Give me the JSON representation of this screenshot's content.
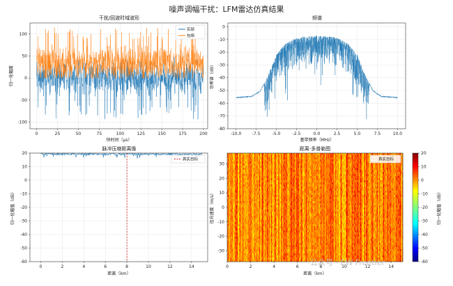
{
  "suptitle": "噪声调幅干扰：LFM雷达仿真结果",
  "watermark": "公众号 · EW Frontier",
  "colors": {
    "blue": "#1f77b4",
    "orange": "#ff7f0e",
    "red": "#d62728",
    "grid": "#e6e6e6"
  },
  "chart_data": [
    {
      "type": "line",
      "title": "干扰/回波时域波形",
      "xlabel": "快时间（μs）",
      "ylabel": "归一化幅度",
      "xlim": [
        -8,
        205
      ],
      "ylim": [
        -115,
        125
      ],
      "xticks": [
        0,
        25,
        50,
        75,
        100,
        125,
        150,
        175,
        200
      ],
      "yticks": [
        -100,
        -50,
        0,
        50,
        100
      ],
      "grid": true,
      "legend_position": "top-right",
      "series": [
        {
          "name": "实部",
          "color": "#1f77b4",
          "pattern": "noise",
          "center": 0,
          "spread": [
            -95,
            55
          ],
          "x_range": [
            0,
            200
          ]
        },
        {
          "name": "包络",
          "color": "#ff7f0e",
          "pattern": "noise",
          "center": 20,
          "spread": [
            0,
            115
          ],
          "x_range": [
            0,
            200
          ]
        }
      ]
    },
    {
      "type": "line",
      "title": "频谱",
      "xlabel": "基带频率（MHz）",
      "ylabel": "功率谱（dB）",
      "xlim": [
        -11,
        11
      ],
      "ylim": [
        -80,
        3
      ],
      "xticks": [
        -10.0,
        -7.5,
        -5.0,
        -2.5,
        0.0,
        2.5,
        5.0,
        7.5,
        10.0
      ],
      "yticks": [
        0,
        -10,
        -20,
        -30,
        -40,
        -50,
        -60,
        -70,
        -80
      ],
      "grid": true,
      "series": [
        {
          "name": "",
          "color": "#1f77b4",
          "x": [
            -10,
            -8,
            -7,
            -6,
            -5,
            -4,
            -3,
            -2,
            0,
            2,
            3,
            4,
            5,
            6,
            7,
            8,
            10
          ],
          "y": [
            -55,
            -54,
            -50,
            -38,
            -22,
            -14,
            -10,
            -8,
            -7,
            -8,
            -10,
            -14,
            -22,
            -38,
            -50,
            -54,
            -55
          ]
        }
      ]
    },
    {
      "type": "line",
      "title": "脉冲压缩距离像",
      "xlabel": "距离（km）",
      "ylabel": "归一化幅值（dB）",
      "xlim": [
        -1,
        15.5
      ],
      "ylim": [
        -60,
        20
      ],
      "xticks": [
        0,
        2,
        4,
        6,
        8,
        10,
        12,
        14
      ],
      "yticks": [
        20,
        10,
        0,
        -10,
        -20,
        -30,
        -40,
        -50,
        -60
      ],
      "grid": true,
      "legend_position": "top-right",
      "series": [
        {
          "name": "",
          "color": "#1f77b4",
          "x": [
            0,
            15
          ],
          "y": [
            20,
            20
          ]
        }
      ],
      "vline": {
        "x": 8,
        "label": "真实目标",
        "color": "#d62728"
      }
    },
    {
      "type": "heatmap",
      "title": "距离-多普勒图",
      "xlabel": "距离（km）",
      "ylabel": "径向速度（m/s）",
      "xlim": [
        0,
        15
      ],
      "ylim": [
        -37.5,
        37.5
      ],
      "xticks": [
        0,
        2,
        4,
        6,
        8,
        10,
        12,
        14
      ],
      "yticks": [
        30,
        20,
        10,
        0,
        -10,
        -20,
        -30
      ],
      "colorbar": {
        "label": "归一化幅值（dB）",
        "range": [
          -60,
          20
        ],
        "ticks": [
          20,
          10,
          0,
          -10,
          -20,
          -30,
          -40,
          -50,
          -60
        ]
      },
      "legend": {
        "label": "真实目标",
        "position": "top-right"
      },
      "value_range_shown": [
        0,
        15
      ]
    }
  ]
}
